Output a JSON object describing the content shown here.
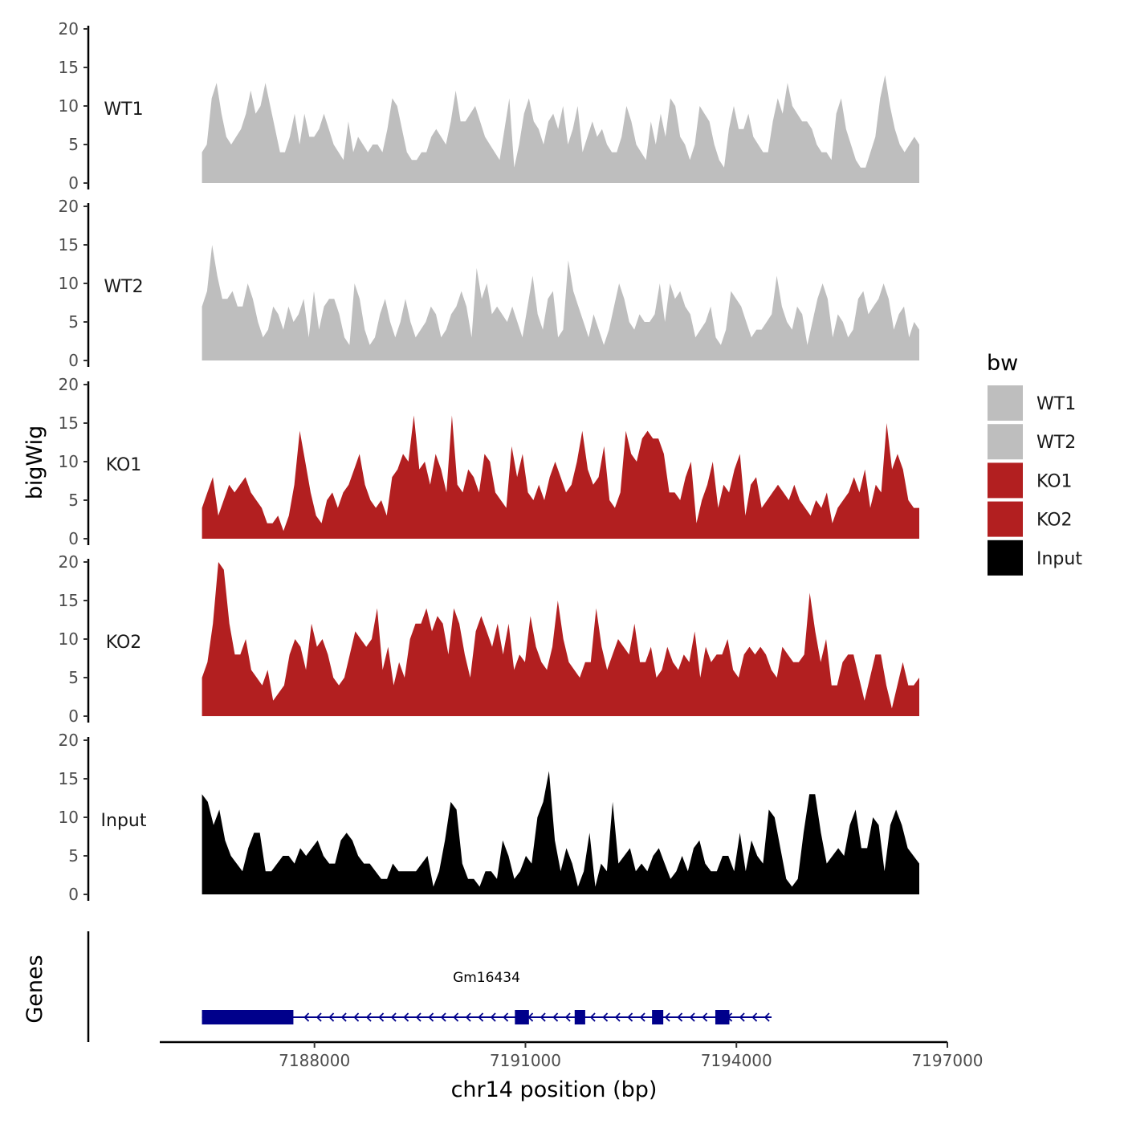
{
  "chart_data": {
    "type": "area",
    "region": {
      "chromosome": "chr14",
      "start": 7186400,
      "end": 7196600
    },
    "y_axis": {
      "title": "bigWig",
      "ylim": [
        0,
        20
      ],
      "ticks": [
        0,
        5,
        10,
        15,
        20
      ]
    },
    "x_axis": {
      "title": "chr14 position (bp)",
      "xlim": [
        7185800,
        7197000
      ],
      "ticks": [
        7188000,
        7191000,
        7194000,
        7197000
      ],
      "tick_labels": [
        "7188000",
        "7191000",
        "7194000",
        "7197000"
      ]
    },
    "tracks": [
      {
        "name": "WT1",
        "color": "#BEBEBE",
        "values": [
          4,
          5,
          11,
          13,
          9,
          6,
          5,
          6,
          7,
          9,
          12,
          9,
          10,
          13,
          10,
          7,
          4,
          4,
          6,
          9,
          5,
          9,
          6,
          6,
          7,
          9,
          7,
          5,
          4,
          3,
          8,
          4,
          6,
          5,
          4,
          5,
          5,
          4,
          7,
          11,
          10,
          7,
          4,
          3,
          3,
          4,
          4,
          6,
          7,
          6,
          5,
          8,
          12,
          8,
          8,
          9,
          10,
          8,
          6,
          5,
          4,
          3,
          7,
          11,
          2,
          5,
          9,
          11,
          8,
          7,
          5,
          8,
          9,
          7,
          10,
          5,
          7,
          10,
          4,
          6,
          8,
          6,
          7,
          5,
          4,
          4,
          6,
          10,
          8,
          5,
          4,
          3,
          8,
          5,
          9,
          6,
          11,
          10,
          6,
          5,
          3,
          5,
          10,
          9,
          8,
          5,
          3,
          2,
          7,
          10,
          7,
          7,
          9,
          6,
          5,
          4,
          4,
          8,
          11,
          9,
          13,
          10,
          9,
          8,
          8,
          7,
          5,
          4,
          4,
          3,
          9,
          11,
          7,
          5,
          3,
          2,
          2,
          4,
          6,
          11,
          14,
          10,
          7,
          5,
          4,
          5,
          6,
          5
        ]
      },
      {
        "name": "WT2",
        "color": "#BEBEBE",
        "values": [
          7,
          9,
          15,
          11,
          8,
          8,
          9,
          7,
          7,
          10,
          8,
          5,
          3,
          4,
          7,
          6,
          4,
          7,
          5,
          6,
          8,
          3,
          9,
          4,
          7,
          8,
          8,
          6,
          3,
          2,
          10,
          8,
          4,
          2,
          3,
          6,
          8,
          5,
          3,
          5,
          8,
          5,
          3,
          4,
          5,
          7,
          6,
          3,
          4,
          6,
          7,
          9,
          7,
          3,
          12,
          8,
          10,
          6,
          7,
          6,
          5,
          7,
          5,
          3,
          7,
          11,
          6,
          4,
          8,
          9,
          3,
          4,
          13,
          9,
          7,
          5,
          3,
          6,
          4,
          2,
          4,
          7,
          10,
          8,
          5,
          4,
          6,
          5,
          5,
          6,
          10,
          5,
          10,
          8,
          9,
          7,
          6,
          3,
          4,
          5,
          7,
          3,
          2,
          4,
          9,
          8,
          7,
          5,
          3,
          4,
          4,
          5,
          6,
          11,
          7,
          5,
          4,
          7,
          6,
          2,
          5,
          8,
          10,
          8,
          3,
          6,
          5,
          3,
          4,
          8,
          9,
          6,
          7,
          8,
          10,
          8,
          4,
          6,
          7,
          3,
          5,
          4
        ]
      },
      {
        "name": "KO1",
        "color": "#B21F20",
        "values": [
          4,
          6,
          8,
          3,
          5,
          7,
          6,
          7,
          8,
          6,
          5,
          4,
          2,
          2,
          3,
          1,
          3,
          7,
          14,
          10,
          6,
          3,
          2,
          5,
          6,
          4,
          6,
          7,
          9,
          11,
          7,
          5,
          4,
          5,
          3,
          8,
          9,
          11,
          10,
          16,
          9,
          10,
          7,
          11,
          9,
          6,
          16,
          7,
          6,
          9,
          8,
          6,
          11,
          10,
          6,
          5,
          4,
          12,
          8,
          11,
          6,
          5,
          7,
          5,
          8,
          10,
          8,
          6,
          7,
          10,
          14,
          9,
          7,
          8,
          12,
          5,
          4,
          6,
          14,
          11,
          10,
          13,
          14,
          13,
          13,
          11,
          6,
          6,
          5,
          8,
          10,
          2,
          5,
          7,
          10,
          4,
          7,
          6,
          9,
          11,
          3,
          7,
          8,
          4,
          5,
          6,
          7,
          6,
          5,
          7,
          5,
          4,
          3,
          5,
          4,
          6,
          2,
          4,
          5,
          6,
          8,
          6,
          9,
          4,
          7,
          6,
          15,
          9,
          11,
          9,
          5,
          4,
          4
        ]
      },
      {
        "name": "KO2",
        "color": "#B21F20",
        "values": [
          5,
          7,
          12,
          20,
          19,
          12,
          8,
          8,
          10,
          6,
          5,
          4,
          6,
          2,
          3,
          4,
          8,
          10,
          9,
          6,
          12,
          9,
          10,
          8,
          5,
          4,
          5,
          8,
          11,
          10,
          9,
          10,
          14,
          6,
          9,
          4,
          7,
          5,
          10,
          12,
          12,
          14,
          11,
          13,
          12,
          8,
          14,
          12,
          8,
          5,
          11,
          13,
          11,
          9,
          12,
          8,
          12,
          6,
          8,
          7,
          13,
          9,
          7,
          6,
          9,
          15,
          10,
          7,
          6,
          5,
          7,
          7,
          14,
          9,
          6,
          8,
          10,
          9,
          8,
          12,
          7,
          7,
          9,
          5,
          6,
          9,
          7,
          6,
          8,
          7,
          11,
          5,
          9,
          7,
          8,
          8,
          10,
          6,
          5,
          8,
          9,
          8,
          9,
          8,
          6,
          5,
          9,
          8,
          7,
          7,
          8,
          16,
          11,
          7,
          10,
          4,
          4,
          7,
          8,
          8,
          5,
          2,
          5,
          8,
          8,
          4,
          1,
          4,
          7,
          4,
          4,
          5
        ]
      },
      {
        "name": "Input",
        "color": "#000000",
        "values": [
          13,
          12,
          9,
          11,
          7,
          5,
          4,
          3,
          6,
          8,
          8,
          3,
          3,
          4,
          5,
          5,
          4,
          6,
          5,
          6,
          7,
          5,
          4,
          4,
          7,
          8,
          7,
          5,
          4,
          4,
          3,
          2,
          2,
          4,
          3,
          3,
          3,
          3,
          4,
          5,
          1,
          3,
          7,
          12,
          11,
          4,
          2,
          2,
          1,
          3,
          3,
          2,
          7,
          5,
          2,
          3,
          5,
          4,
          10,
          12,
          16,
          7,
          3,
          6,
          4,
          1,
          3,
          8,
          1,
          4,
          3,
          12,
          4,
          5,
          6,
          3,
          4,
          3,
          5,
          6,
          4,
          2,
          3,
          5,
          3,
          6,
          7,
          4,
          3,
          3,
          5,
          5,
          3,
          8,
          3,
          7,
          5,
          4,
          11,
          10,
          6,
          2,
          1,
          2,
          8,
          13,
          13,
          8,
          4,
          5,
          6,
          5,
          9,
          11,
          6,
          6,
          10,
          9,
          3,
          9,
          11,
          9,
          6,
          5,
          4
        ]
      }
    ],
    "genes": {
      "title": "Genes",
      "items": [
        {
          "name": "Gm16434",
          "strand": "-",
          "start": 7186400,
          "end": 7194500,
          "exons": [
            [
              7186400,
              7187700
            ],
            [
              7190850,
              7191050
            ],
            [
              7191700,
              7191850
            ],
            [
              7192800,
              7192960
            ],
            [
              7193700,
              7193900
            ]
          ]
        }
      ]
    },
    "legend": {
      "title": "bw",
      "position": "right",
      "entries": [
        {
          "label": "WT1",
          "color": "#BEBEBE"
        },
        {
          "label": "WT2",
          "color": "#BEBEBE"
        },
        {
          "label": "KO1",
          "color": "#B21F20"
        },
        {
          "label": "KO2",
          "color": "#B21F20"
        },
        {
          "label": "Input",
          "color": "#000000"
        }
      ]
    }
  }
}
